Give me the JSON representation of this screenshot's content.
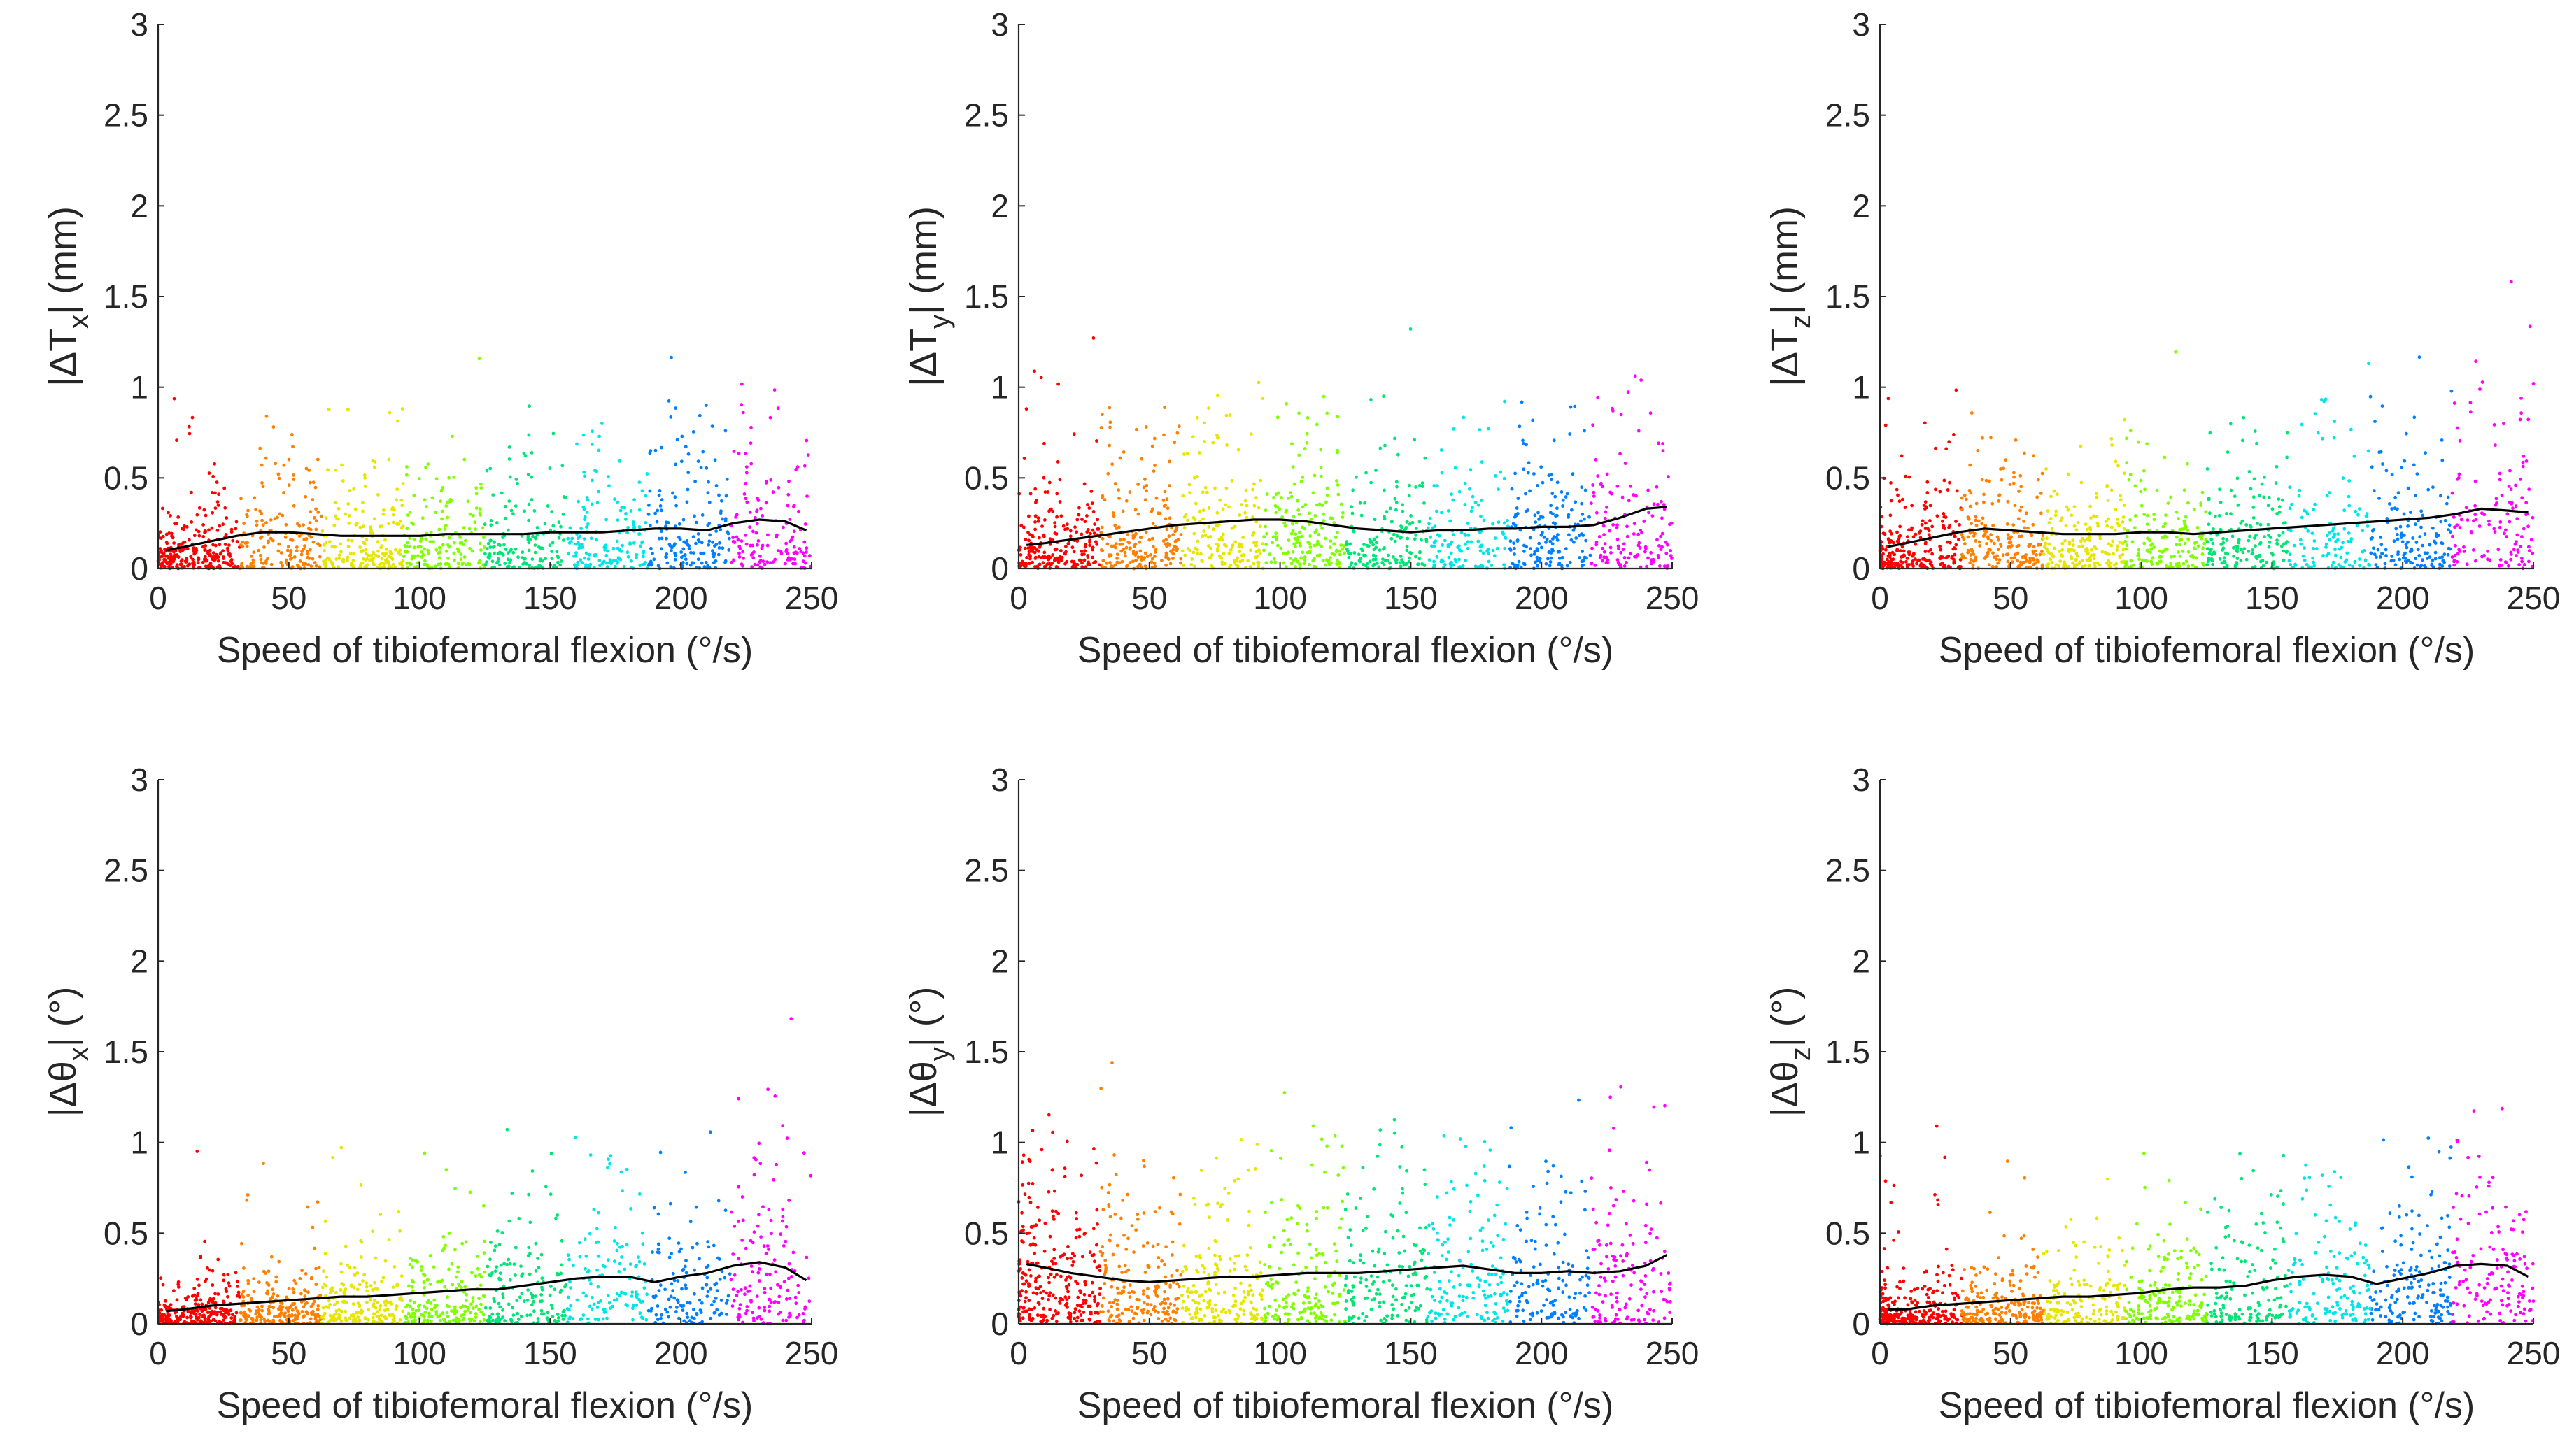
{
  "figure": {
    "colors": {
      "trend": "#000000",
      "axis": "#262626",
      "scatter_palette": [
        "#ff0000",
        "#ff8000",
        "#e6e600",
        "#80ff00",
        "#00e676",
        "#00e6e6",
        "#0080ff",
        "#ff00ff"
      ]
    }
  },
  "chart_data": [
    {
      "type": "scatter",
      "panel": "top-left",
      "ylabel_main": "|ΔT",
      "ylabel_sub": "x",
      "ylabel_unit": "| (mm)",
      "xlabel": "Speed of tibiofemoral flexion (°/s)",
      "xlim": [
        0,
        250
      ],
      "ylim": [
        0,
        3
      ],
      "xticks": [
        "0",
        "50",
        "100",
        "150",
        "200",
        "250"
      ],
      "yticks": [
        "0",
        "0.5",
        "1",
        "1.5",
        "2",
        "2.5",
        "3"
      ],
      "trend_x": [
        3,
        10,
        20,
        30,
        40,
        50,
        60,
        70,
        80,
        90,
        100,
        110,
        120,
        130,
        140,
        150,
        160,
        170,
        180,
        190,
        200,
        210,
        220,
        230,
        240,
        248
      ],
      "trend_y": [
        0.1,
        0.12,
        0.15,
        0.18,
        0.2,
        0.2,
        0.19,
        0.18,
        0.18,
        0.18,
        0.18,
        0.19,
        0.19,
        0.19,
        0.19,
        0.2,
        0.2,
        0.2,
        0.21,
        0.22,
        0.22,
        0.21,
        0.25,
        0.27,
        0.26,
        0.21
      ]
    },
    {
      "type": "scatter",
      "panel": "top-middle",
      "ylabel_main": "|ΔT",
      "ylabel_sub": "y",
      "ylabel_unit": "| (mm)",
      "xlabel": "Speed of tibiofemoral flexion (°/s)",
      "xlim": [
        0,
        250
      ],
      "ylim": [
        0,
        3
      ],
      "xticks": [
        "0",
        "50",
        "100",
        "150",
        "200",
        "250"
      ],
      "yticks": [
        "0",
        "0.5",
        "1",
        "1.5",
        "2",
        "2.5",
        "3"
      ],
      "trend_x": [
        3,
        10,
        20,
        30,
        40,
        50,
        60,
        70,
        80,
        90,
        100,
        110,
        120,
        130,
        140,
        150,
        160,
        170,
        180,
        190,
        200,
        210,
        220,
        230,
        240,
        248
      ],
      "trend_y": [
        0.13,
        0.14,
        0.16,
        0.18,
        0.2,
        0.22,
        0.24,
        0.25,
        0.26,
        0.27,
        0.27,
        0.26,
        0.24,
        0.22,
        0.21,
        0.2,
        0.21,
        0.21,
        0.22,
        0.22,
        0.23,
        0.23,
        0.24,
        0.28,
        0.33,
        0.34
      ]
    },
    {
      "type": "scatter",
      "panel": "top-right",
      "ylabel_main": "|ΔT",
      "ylabel_sub": "z",
      "ylabel_unit": "| (mm)",
      "xlabel": "Speed of tibiofemoral flexion (°/s)",
      "xlim": [
        0,
        250
      ],
      "ylim": [
        0,
        3
      ],
      "xticks": [
        "0",
        "50",
        "100",
        "150",
        "200",
        "250"
      ],
      "yticks": [
        "0",
        "0.5",
        "1",
        "1.5",
        "2",
        "2.5",
        "3"
      ],
      "trend_x": [
        3,
        10,
        20,
        30,
        40,
        50,
        60,
        70,
        80,
        90,
        100,
        110,
        120,
        130,
        140,
        150,
        160,
        170,
        180,
        190,
        200,
        210,
        220,
        230,
        240,
        248
      ],
      "trend_y": [
        0.12,
        0.14,
        0.17,
        0.2,
        0.22,
        0.21,
        0.2,
        0.19,
        0.19,
        0.19,
        0.2,
        0.2,
        0.19,
        0.2,
        0.21,
        0.22,
        0.23,
        0.24,
        0.25,
        0.26,
        0.27,
        0.28,
        0.3,
        0.33,
        0.32,
        0.31
      ]
    },
    {
      "type": "scatter",
      "panel": "bottom-left",
      "ylabel_main": "|Δθ",
      "ylabel_sub": "x",
      "ylabel_unit": "| (°)",
      "xlabel": "Speed of tibiofemoral flexion (°/s)",
      "xlim": [
        0,
        250
      ],
      "ylim": [
        0,
        3
      ],
      "xticks": [
        "0",
        "50",
        "100",
        "150",
        "200",
        "250"
      ],
      "yticks": [
        "0",
        "0.5",
        "1",
        "1.5",
        "2",
        "2.5",
        "3"
      ],
      "trend_x": [
        3,
        10,
        20,
        30,
        40,
        50,
        60,
        70,
        80,
        90,
        100,
        110,
        120,
        130,
        140,
        150,
        160,
        170,
        180,
        190,
        200,
        210,
        220,
        230,
        240,
        248
      ],
      "trend_y": [
        0.07,
        0.08,
        0.1,
        0.11,
        0.12,
        0.13,
        0.14,
        0.15,
        0.15,
        0.16,
        0.17,
        0.18,
        0.19,
        0.19,
        0.21,
        0.23,
        0.25,
        0.26,
        0.26,
        0.23,
        0.26,
        0.28,
        0.32,
        0.34,
        0.31,
        0.24
      ]
    },
    {
      "type": "scatter",
      "panel": "bottom-middle",
      "ylabel_main": "|Δθ",
      "ylabel_sub": "y",
      "ylabel_unit": "| (°)",
      "xlabel": "Speed of tibiofemoral flexion (°/s)",
      "xlim": [
        0,
        250
      ],
      "ylim": [
        0,
        3
      ],
      "xticks": [
        "0",
        "50",
        "100",
        "150",
        "200",
        "250"
      ],
      "yticks": [
        "0",
        "0.5",
        "1",
        "1.5",
        "2",
        "2.5",
        "3"
      ],
      "trend_x": [
        3,
        10,
        20,
        30,
        40,
        50,
        60,
        70,
        80,
        90,
        100,
        110,
        120,
        130,
        140,
        150,
        160,
        170,
        180,
        190,
        200,
        210,
        220,
        230,
        240,
        248
      ],
      "trend_y": [
        0.33,
        0.31,
        0.28,
        0.26,
        0.24,
        0.23,
        0.24,
        0.25,
        0.26,
        0.26,
        0.27,
        0.28,
        0.28,
        0.28,
        0.29,
        0.3,
        0.31,
        0.32,
        0.3,
        0.28,
        0.28,
        0.29,
        0.28,
        0.29,
        0.32,
        0.38
      ]
    },
    {
      "type": "scatter",
      "panel": "bottom-right",
      "ylabel_main": "|Δθ",
      "ylabel_sub": "z",
      "ylabel_unit": "| (°)",
      "xlabel": "Speed of tibiofemoral flexion (°/s)",
      "xlim": [
        0,
        250
      ],
      "ylim": [
        0,
        3
      ],
      "xticks": [
        "0",
        "50",
        "100",
        "150",
        "200",
        "250"
      ],
      "yticks": [
        "0",
        "0.5",
        "1",
        "1.5",
        "2",
        "2.5",
        "3"
      ],
      "trend_x": [
        3,
        10,
        20,
        30,
        40,
        50,
        60,
        70,
        80,
        90,
        100,
        110,
        120,
        130,
        140,
        150,
        160,
        170,
        180,
        190,
        200,
        210,
        220,
        230,
        240,
        248
      ],
      "trend_y": [
        0.08,
        0.08,
        0.1,
        0.11,
        0.12,
        0.13,
        0.14,
        0.15,
        0.15,
        0.16,
        0.17,
        0.19,
        0.2,
        0.2,
        0.21,
        0.24,
        0.26,
        0.27,
        0.26,
        0.22,
        0.25,
        0.28,
        0.32,
        0.33,
        0.32,
        0.26
      ]
    }
  ]
}
